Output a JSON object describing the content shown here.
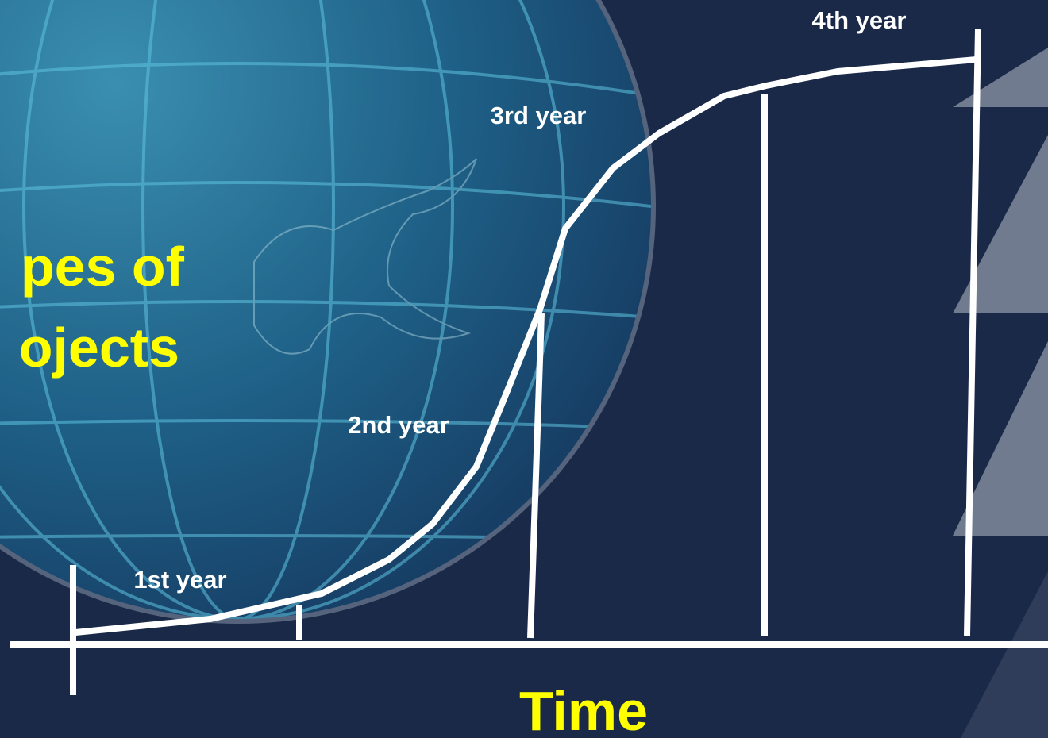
{
  "title": {
    "lines": [
      "pes of",
      "ojects"
    ]
  },
  "year_labels": [
    "1st year",
    "2nd year",
    "3rd year",
    "4th year"
  ],
  "axis_label": "Time"
}
